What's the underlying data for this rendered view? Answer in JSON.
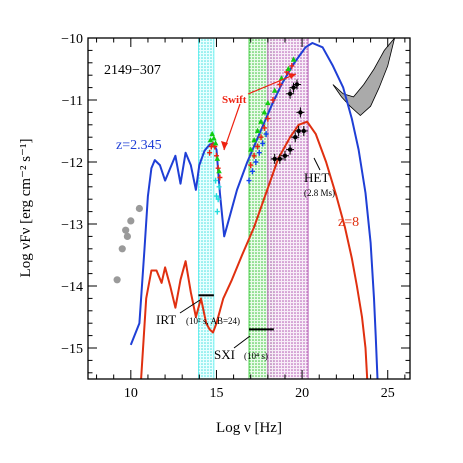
{
  "chart_data": {
    "type": "line",
    "title": "",
    "source_label": "2149−307",
    "xlabel": "Log ν [Hz]",
    "ylabel": "Log νFν [erg cm⁻² s⁻¹]",
    "xlim": [
      7.5,
      26.3
    ],
    "ylim": [
      -15.5,
      -10.0
    ],
    "x_ticks": [
      10,
      15,
      20,
      25
    ],
    "y_ticks": [
      -15,
      -14,
      -13,
      -12,
      -11,
      -10
    ],
    "grid": false,
    "colors": {
      "z2345": "#1f3fd6",
      "z8": "#e03010",
      "archival": "#9a9a9a",
      "swift_green": "#11cc11",
      "swift_red": "#ee2211",
      "swift_blue": "#1144ee",
      "swift_cyan": "#22dddd",
      "het": "#000000",
      "band_cyan": "#55eeee",
      "band_green": "#33cc33",
      "band_purple": "#aa44aa",
      "gamma_fill": "#aaaaaa"
    },
    "series": [
      {
        "name": "z=2.345",
        "color": "#1f3fd6",
        "x": [
          10.0,
          10.5,
          10.8,
          11.0,
          11.2,
          11.4,
          11.7,
          12.0,
          12.3,
          12.6,
          12.9,
          13.2,
          13.5,
          13.8,
          14.0,
          14.3,
          14.6,
          14.8,
          15.0,
          15.2,
          15.45,
          15.8,
          16.2,
          16.8,
          17.5,
          18.2,
          18.8,
          19.5,
          20.2,
          20.6,
          21.2,
          21.8,
          22.4,
          22.9,
          23.3,
          23.7,
          24.0,
          24.2,
          24.3,
          24.4
        ],
        "y": [
          -14.95,
          -14.6,
          -13.4,
          -12.55,
          -12.1,
          -11.97,
          -12.05,
          -12.3,
          -12.1,
          -11.9,
          -12.35,
          -11.85,
          -12.05,
          -12.45,
          -12.05,
          -11.82,
          -11.72,
          -11.7,
          -11.8,
          -12.5,
          -13.2,
          -12.85,
          -12.45,
          -12.0,
          -11.55,
          -11.1,
          -10.75,
          -10.42,
          -10.15,
          -10.08,
          -10.15,
          -10.45,
          -10.8,
          -11.3,
          -11.8,
          -12.5,
          -13.3,
          -14.2,
          -14.8,
          -15.5
        ]
      },
      {
        "name": "z=8",
        "color": "#e03010",
        "x": [
          10.6,
          10.9,
          11.2,
          11.5,
          11.8,
          12.0,
          12.3,
          12.6,
          12.9,
          13.2,
          13.5,
          13.8,
          14.1,
          14.4,
          14.6,
          14.8,
          15.0,
          15.4,
          15.9,
          16.5,
          17.2,
          17.9,
          18.6,
          19.3,
          19.8,
          20.3,
          20.8,
          21.4,
          22.0,
          22.5,
          22.9,
          23.2,
          23.5,
          23.7,
          23.8
        ],
        "y": [
          -15.5,
          -14.2,
          -13.75,
          -13.75,
          -13.95,
          -13.7,
          -14.0,
          -14.35,
          -13.9,
          -13.6,
          -14.1,
          -14.5,
          -14.2,
          -14.6,
          -14.7,
          -14.75,
          -14.6,
          -14.2,
          -13.9,
          -13.5,
          -13.05,
          -12.5,
          -11.95,
          -11.6,
          -11.4,
          -11.35,
          -11.55,
          -12.0,
          -12.55,
          -13.05,
          -13.55,
          -14.0,
          -14.5,
          -15.0,
          -15.5
        ]
      }
    ],
    "archival_points": [
      {
        "x": 9.2,
        "y": -13.9
      },
      {
        "x": 9.5,
        "y": -13.4
      },
      {
        "x": 9.7,
        "y": -13.1
      },
      {
        "x": 9.8,
        "y": -13.2
      },
      {
        "x": 10.0,
        "y": -12.95
      },
      {
        "x": 10.5,
        "y": -12.75
      }
    ],
    "swift_uv_red": [
      {
        "x": 14.6,
        "y": -11.85
      },
      {
        "x": 14.7,
        "y": -11.75
      },
      {
        "x": 14.8,
        "y": -11.72
      },
      {
        "x": 14.9,
        "y": -11.75
      },
      {
        "x": 15.0,
        "y": -11.9
      },
      {
        "x": 15.1,
        "y": -12.1
      },
      {
        "x": 15.2,
        "y": -12.25
      }
    ],
    "swift_uv_green": [
      {
        "x": 14.65,
        "y": -11.65
      },
      {
        "x": 14.75,
        "y": -11.55
      },
      {
        "x": 14.85,
        "y": -11.62
      },
      {
        "x": 14.95,
        "y": -11.7
      },
      {
        "x": 15.05,
        "y": -11.95
      },
      {
        "x": 15.15,
        "y": -12.15
      }
    ],
    "swift_uv_cyan": [
      {
        "x": 14.95,
        "y": -12.3
      },
      {
        "x": 15.0,
        "y": -12.55
      },
      {
        "x": 15.05,
        "y": -12.8
      },
      {
        "x": 15.1,
        "y": -12.6
      },
      {
        "x": 15.15,
        "y": -12.4
      }
    ],
    "swift_xray_blue": [
      {
        "x": 16.9,
        "y": -12.3
      },
      {
        "x": 17.1,
        "y": -12.15
      },
      {
        "x": 17.3,
        "y": -12.0
      },
      {
        "x": 17.5,
        "y": -11.85
      },
      {
        "x": 17.7,
        "y": -11.7
      },
      {
        "x": 17.9,
        "y": -11.55
      }
    ],
    "swift_xray_red": [
      {
        "x": 17.0,
        "y": -12.05
      },
      {
        "x": 17.2,
        "y": -11.9
      },
      {
        "x": 17.4,
        "y": -11.75
      },
      {
        "x": 17.6,
        "y": -11.6
      },
      {
        "x": 17.8,
        "y": -11.45
      },
      {
        "x": 18.0,
        "y": -11.3
      },
      {
        "x": 18.3,
        "y": -11.0
      },
      {
        "x": 18.7,
        "y": -10.75
      },
      {
        "x": 19.1,
        "y": -10.55
      },
      {
        "x": 19.4,
        "y": -10.45
      }
    ],
    "swift_xray_green": [
      {
        "x": 17.0,
        "y": -11.8
      },
      {
        "x": 17.2,
        "y": -11.65
      },
      {
        "x": 17.4,
        "y": -11.5
      },
      {
        "x": 17.6,
        "y": -11.35
      },
      {
        "x": 17.8,
        "y": -11.2
      },
      {
        "x": 18.0,
        "y": -11.05
      },
      {
        "x": 18.4,
        "y": -10.85
      },
      {
        "x": 18.8,
        "y": -10.65
      },
      {
        "x": 19.2,
        "y": -10.5
      },
      {
        "x": 19.5,
        "y": -10.35
      }
    ],
    "het_points": [
      {
        "x": 18.4,
        "y": -11.95
      },
      {
        "x": 18.7,
        "y": -11.95
      },
      {
        "x": 19.0,
        "y": -11.9
      },
      {
        "x": 19.3,
        "y": -11.8
      },
      {
        "x": 19.6,
        "y": -11.6
      },
      {
        "x": 19.8,
        "y": -11.5
      },
      {
        "x": 20.1,
        "y": -11.5
      },
      {
        "x": 19.3,
        "y": -10.9
      },
      {
        "x": 19.5,
        "y": -10.8
      },
      {
        "x": 19.7,
        "y": -10.75
      },
      {
        "x": 19.9,
        "y": -11.2
      }
    ],
    "gamma_bowtie": {
      "upper": [
        [
          21.8,
          -10.75
        ],
        [
          22.4,
          -10.9
        ],
        [
          23.0,
          -10.95
        ],
        [
          23.6,
          -10.75
        ],
        [
          24.2,
          -10.5
        ],
        [
          24.8,
          -10.2
        ],
        [
          25.4,
          -10.0
        ]
      ],
      "lower": [
        [
          25.4,
          -10.0
        ],
        [
          25.0,
          -10.45
        ],
        [
          24.5,
          -10.8
        ],
        [
          24.0,
          -11.1
        ],
        [
          23.4,
          -11.25
        ],
        [
          22.8,
          -11.1
        ],
        [
          22.3,
          -10.95
        ],
        [
          21.8,
          -10.75
        ]
      ]
    },
    "bands": [
      {
        "name": "cyan",
        "x": [
          13.95,
          14.85
        ],
        "color": "#55eeee"
      },
      {
        "name": "green",
        "x": [
          16.9,
          18.35
        ],
        "color": "#33cc33"
      },
      {
        "name": "purple",
        "x": [
          18.0,
          20.35
        ],
        "color": "#aa44aa"
      }
    ],
    "sensitivity_lines": [
      {
        "label": "IRT",
        "x": [
          13.95,
          14.85
        ],
        "y": -14.15
      },
      {
        "label": "SXI",
        "x": [
          16.9,
          18.35
        ],
        "y": -14.7
      }
    ],
    "annotations": {
      "z2345_label": "z=2.345",
      "z8_label": "z=8",
      "swift_label": "Swift",
      "het_label": "HET",
      "het_sub": "(2.8 Ms)",
      "irt_label": "IRT",
      "irt_sub": "(10² s, AB=24)",
      "sxi_label": "SXI",
      "sxi_sub": "(10⁴ s)"
    }
  }
}
